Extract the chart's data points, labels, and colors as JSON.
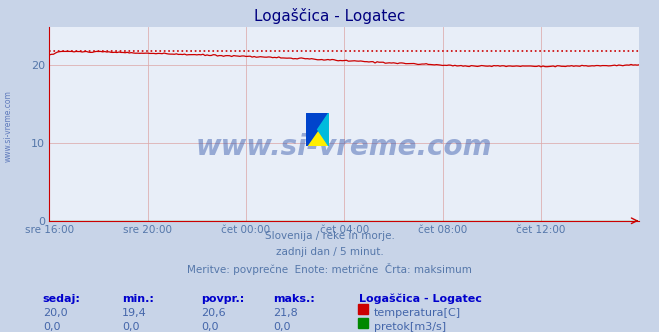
{
  "title": "Logaščica - Logatec",
  "fig_bg_color": "#c8d4e8",
  "plot_bg_color": "#e8eef8",
  "grid_color": "#ddaaaa",
  "title_color": "#000080",
  "axis_label_color": "#5577aa",
  "text_color": "#5577aa",
  "watermark": "www.si-vreme.com",
  "watermark_color": "#3355aa",
  "subtitle_lines": [
    "Slovenija / reke in morje.",
    "zadnji dan / 5 minut.",
    "Meritve: povprečne  Enote: metrične  Črta: maksimum"
  ],
  "xlim": [
    0,
    288
  ],
  "ylim": [
    0,
    25
  ],
  "yticks": [
    0,
    10,
    20
  ],
  "xtick_labels": [
    "sre 16:00",
    "sre 20:00",
    "čet 00:00",
    "čet 04:00",
    "čet 08:00",
    "čet 12:00"
  ],
  "xtick_positions": [
    0,
    48,
    96,
    144,
    192,
    240
  ],
  "temp_max_value": 21.8,
  "temp_color": "#cc0000",
  "flow_color": "#008800",
  "legend_station": "Logaščica - Logatec",
  "legend_temp_label": "temperatura[C]",
  "legend_flow_label": "pretok[m3/s]",
  "table_headers": [
    "sedaj:",
    "min.:",
    "povpr.:",
    "maks.:"
  ],
  "table_temp": [
    "20,0",
    "19,4",
    "20,6",
    "21,8"
  ],
  "table_flow": [
    "0,0",
    "0,0",
    "0,0",
    "0,0"
  ],
  "header_color": "#0000cc",
  "value_color": "#4466aa",
  "spine_color": "#cc0000",
  "arrow_color": "#cc0000"
}
